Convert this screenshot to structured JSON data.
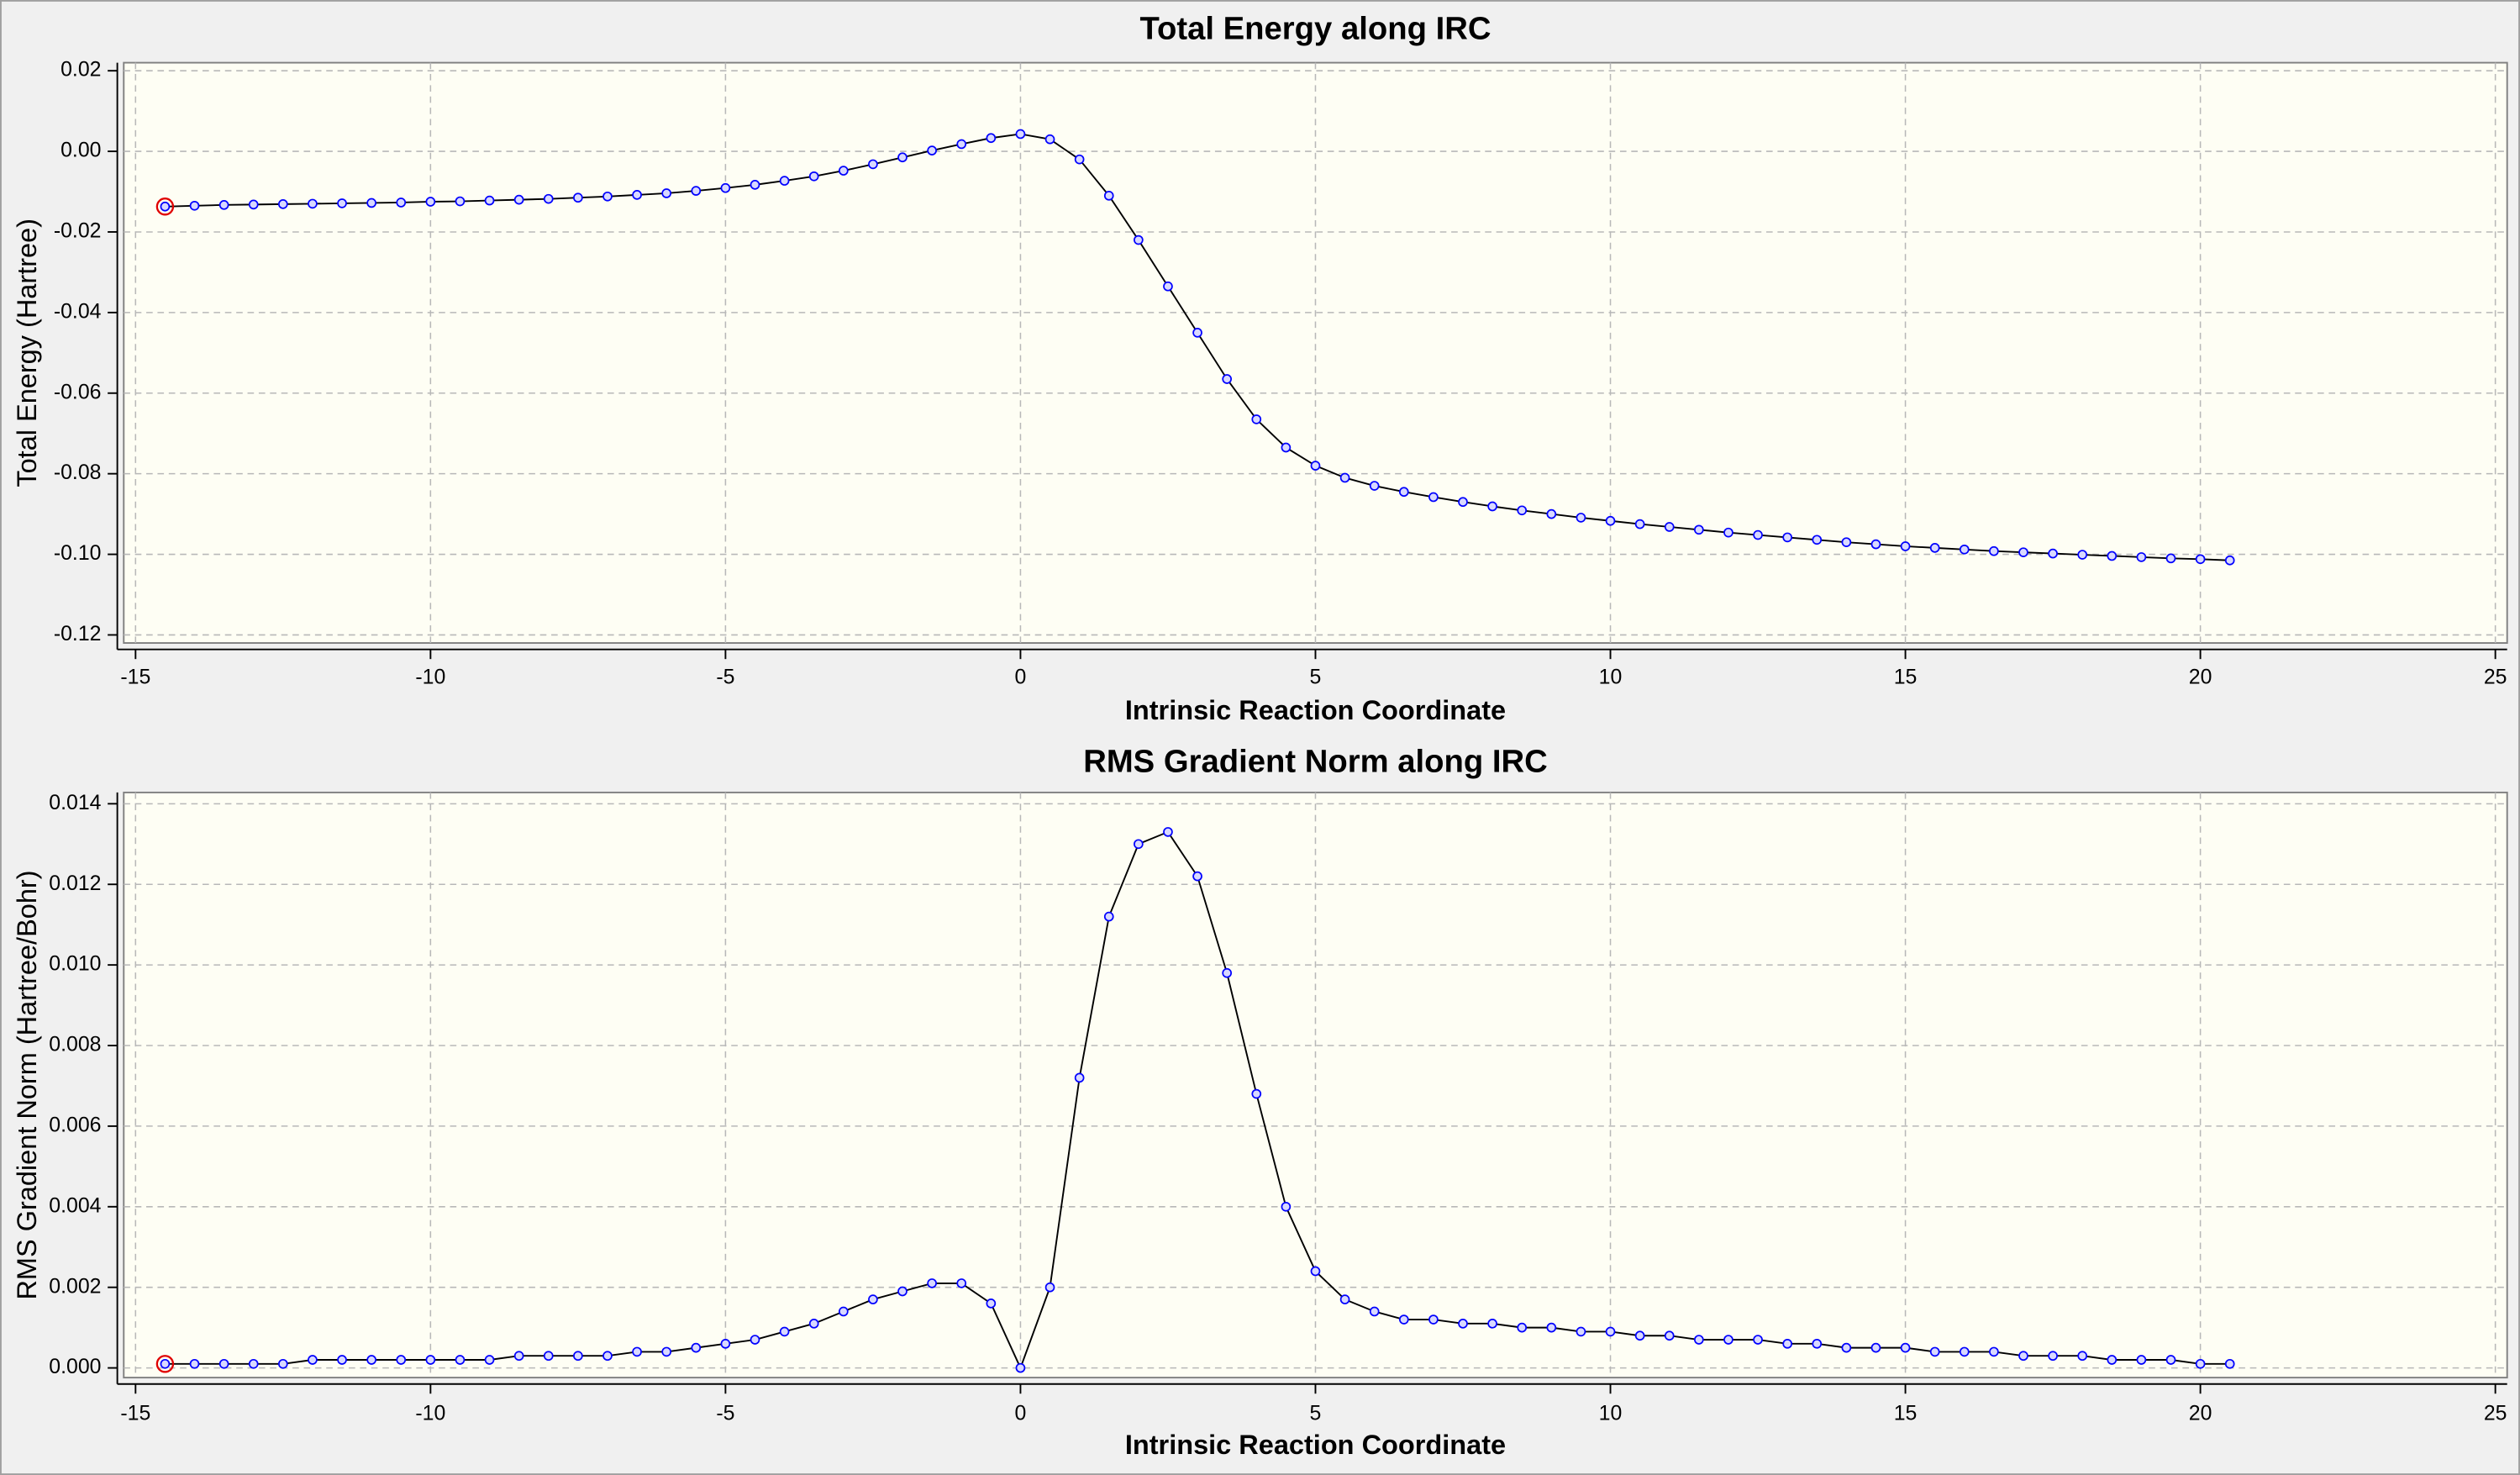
{
  "chart_data": [
    {
      "type": "line",
      "title": "Total Energy along IRC",
      "xlabel": "Intrinsic Reaction Coordinate",
      "ylabel": "Total Energy (Hartree)",
      "x": [
        -14.5,
        -14,
        -13.5,
        -13,
        -12.5,
        -12,
        -11.5,
        -11,
        -10.5,
        -10,
        -9.5,
        -9,
        -8.5,
        -8,
        -7.5,
        -7,
        -6.5,
        -6,
        -5.5,
        -5,
        -4.5,
        -4,
        -3.5,
        -3,
        -2.5,
        -2,
        -1.5,
        -1,
        -0.5,
        0,
        0.5,
        1,
        1.5,
        2,
        2.5,
        3,
        3.5,
        4,
        4.5,
        5,
        5.5,
        6,
        6.5,
        7,
        7.5,
        8,
        8.5,
        9,
        9.5,
        10,
        10.5,
        11,
        11.5,
        12,
        12.5,
        13,
        13.5,
        14,
        14.5,
        15,
        15.5,
        16,
        16.5,
        17,
        17.5,
        18,
        18.5,
        19,
        19.5,
        20,
        20.5
      ],
      "values": [
        -0.0137,
        -0.0135,
        -0.0133,
        -0.0132,
        -0.0131,
        -0.013,
        -0.0129,
        -0.0128,
        -0.0127,
        -0.0125,
        -0.0124,
        -0.0122,
        -0.012,
        -0.0118,
        -0.0115,
        -0.0112,
        -0.0108,
        -0.0104,
        -0.0098,
        -0.0091,
        -0.0083,
        -0.0073,
        -0.0062,
        -0.0048,
        -0.0032,
        -0.0015,
        0.0002,
        0.0018,
        0.0033,
        0.0043,
        0.003,
        -0.002,
        -0.011,
        -0.022,
        -0.0335,
        -0.045,
        -0.0565,
        -0.0665,
        -0.0735,
        -0.078,
        -0.081,
        -0.083,
        -0.0845,
        -0.0858,
        -0.087,
        -0.0881,
        -0.0891,
        -0.09,
        -0.0909,
        -0.0917,
        -0.0925,
        -0.0932,
        -0.0939,
        -0.0946,
        -0.0952,
        -0.0958,
        -0.0964,
        -0.097,
        -0.0975,
        -0.098,
        -0.0984,
        -0.0988,
        -0.0992,
        -0.0995,
        -0.0998,
        -0.1001,
        -0.1004,
        -0.1007,
        -0.101,
        -0.1012,
        -0.1015
      ],
      "line_color": "#000000",
      "marker_color": "#0000ff",
      "xlim": [
        -15.2,
        25.2
      ],
      "xticks": [
        -15,
        -10,
        -5,
        0,
        5,
        10,
        15,
        20,
        25
      ],
      "ylim": [
        -0.122,
        0.022
      ],
      "yticks": [
        {
          "value": 0.02,
          "label": "0.02"
        },
        {
          "value": 0,
          "label": "0.00"
        },
        {
          "value": -0.02,
          "label": "-0.02"
        },
        {
          "value": -0.04,
          "label": "-0.04"
        },
        {
          "value": -0.06,
          "label": "-0.06"
        },
        {
          "value": -0.08,
          "label": "-0.08"
        },
        {
          "value": -0.1,
          "label": "-0.10"
        },
        {
          "value": -0.12,
          "label": "-0.12"
        }
      ],
      "grid": true
    },
    {
      "type": "line",
      "title": "RMS Gradient Norm along IRC",
      "xlabel": "Intrinsic Reaction Coordinate",
      "ylabel": "RMS Gradient Norm (Hartree/Bohr)",
      "x": [
        -14.5,
        -14,
        -13.5,
        -13,
        -12.5,
        -12,
        -11.5,
        -11,
        -10.5,
        -10,
        -9.5,
        -9,
        -8.5,
        -8,
        -7.5,
        -7,
        -6.5,
        -6,
        -5.5,
        -5,
        -4.5,
        -4,
        -3.5,
        -3,
        -2.5,
        -2,
        -1.5,
        -1,
        -0.5,
        0,
        0.5,
        1,
        1.5,
        2,
        2.5,
        3,
        3.5,
        4,
        4.5,
        5,
        5.5,
        6,
        6.5,
        7,
        7.5,
        8,
        8.5,
        9,
        9.5,
        10,
        10.5,
        11,
        11.5,
        12,
        12.5,
        13,
        13.5,
        14,
        14.5,
        15,
        15.5,
        16,
        16.5,
        17,
        17.5,
        18,
        18.5,
        19,
        19.5,
        20,
        20.5
      ],
      "values": [
        0.0001,
        0.0001,
        0.0001,
        0.0001,
        0.0001,
        0.0002,
        0.0002,
        0.0002,
        0.0002,
        0.0002,
        0.0002,
        0.0002,
        0.0003,
        0.0003,
        0.0003,
        0.0003,
        0.0004,
        0.0004,
        0.0005,
        0.0006,
        0.0007,
        0.0009,
        0.0011,
        0.0014,
        0.0017,
        0.0019,
        0.0021,
        0.0021,
        0.0016,
        0.0,
        0.002,
        0.0072,
        0.0112,
        0.013,
        0.0133,
        0.0122,
        0.0098,
        0.0068,
        0.004,
        0.0024,
        0.0017,
        0.0014,
        0.0012,
        0.0012,
        0.0011,
        0.0011,
        0.001,
        0.001,
        0.0009,
        0.0009,
        0.0008,
        0.0008,
        0.0007,
        0.0007,
        0.0007,
        0.0006,
        0.0006,
        0.0005,
        0.0005,
        0.0005,
        0.0004,
        0.0004,
        0.0004,
        0.0003,
        0.0003,
        0.0003,
        0.0002,
        0.0002,
        0.0002,
        0.0001,
        0.0001
      ],
      "line_color": "#000000",
      "marker_color": "#0000ff",
      "xlim": [
        -15.2,
        25.2
      ],
      "xticks": [
        -15,
        -10,
        -5,
        0,
        5,
        10,
        15,
        20,
        25
      ],
      "ylim": [
        -0.00024,
        0.01428
      ],
      "yticks": [
        {
          "value": 0.014,
          "label": "0.014"
        },
        {
          "value": 0.012,
          "label": "0.012"
        },
        {
          "value": 0.01,
          "label": "0.010"
        },
        {
          "value": 0.008,
          "label": "0.008"
        },
        {
          "value": 0.006,
          "label": "0.006"
        },
        {
          "value": 0.004,
          "label": "0.004"
        },
        {
          "value": 0.002,
          "label": "0.002"
        },
        {
          "value": 0,
          "label": "0.000"
        }
      ],
      "grid": true
    }
  ]
}
